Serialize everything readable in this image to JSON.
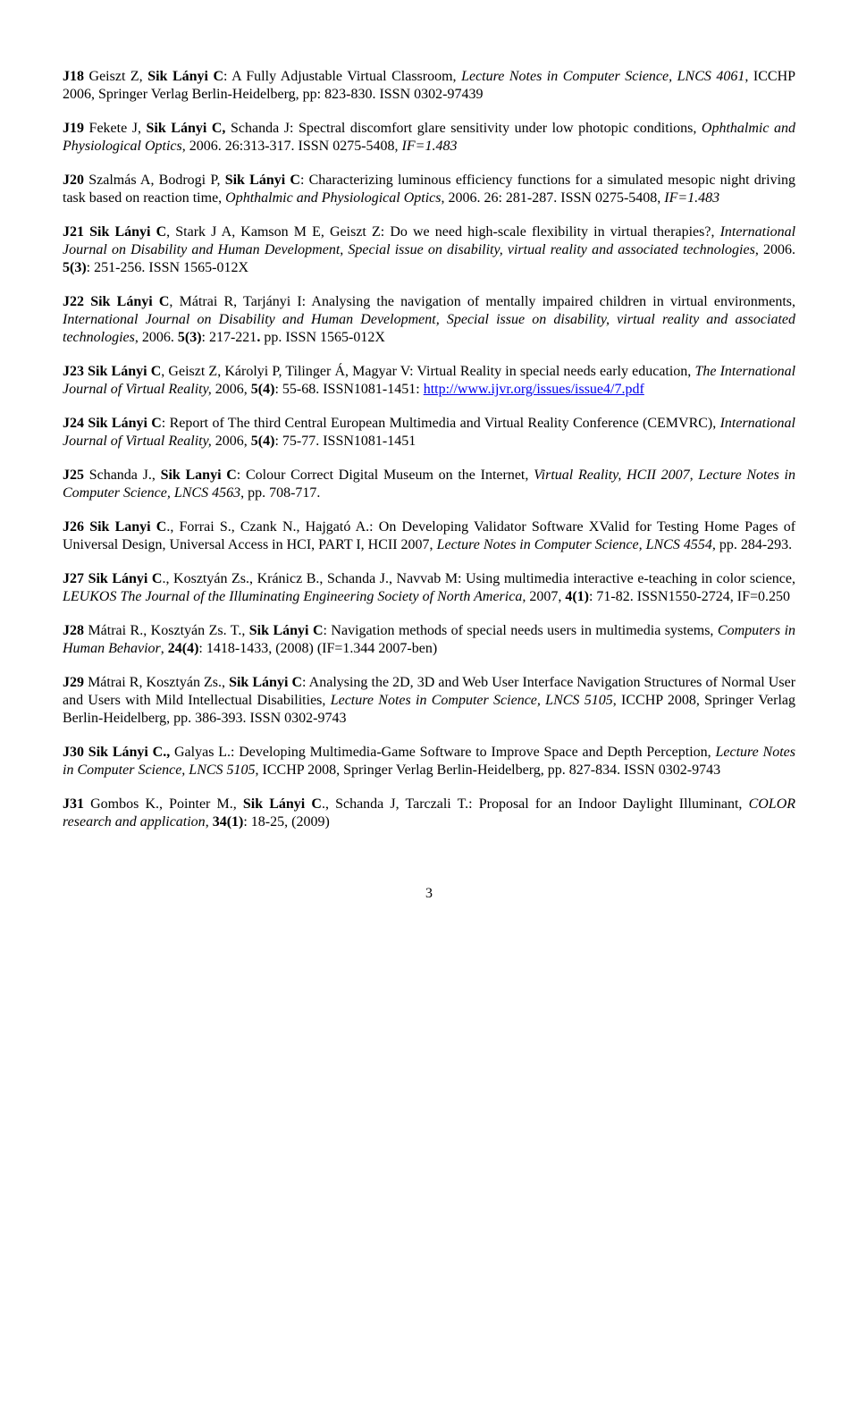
{
  "entries": [
    {
      "id": "J18",
      "segments": [
        {
          "t": "J18",
          "bold": true
        },
        {
          "t": "     Geiszt Z, "
        },
        {
          "t": "Sik Lányi C",
          "bold": true
        },
        {
          "t": ": A Fully Adjustable Virtual Classroom, "
        },
        {
          "t": "Lecture Notes in Computer Science, LNCS 4061",
          "italic": true
        },
        {
          "t": ", ICCHP 2006, Springer Verlag Berlin-Heidelberg, pp: 823-830. ISSN 0302-97439"
        }
      ]
    },
    {
      "id": "J19",
      "segments": [
        {
          "t": "J19",
          "bold": true
        },
        {
          "t": "     Fekete J, "
        },
        {
          "t": "Sik Lányi C,",
          "bold": true
        },
        {
          "t": " Schanda J: Spectral discomfort glare sensitivity under low photopic conditions, "
        },
        {
          "t": "Ophthalmic and Physiological Optics",
          "italic": true
        },
        {
          "t": ", 2006. 26:313-317. ISSN 0275-5408, "
        },
        {
          "t": "IF=1.483",
          "italic": true
        }
      ]
    },
    {
      "id": "J20",
      "segments": [
        {
          "t": "J20",
          "bold": true
        },
        {
          "t": "     Szalmás A, Bodrogi P, "
        },
        {
          "t": "Sik Lányi C",
          "bold": true
        },
        {
          "t": ": Characterizing luminous efficiency functions for a simulated mesopic night driving task based on reaction time, "
        },
        {
          "t": "Ophthalmic and Physiological Optics",
          "italic": true
        },
        {
          "t": ", 2006. 26: 281-287. ISSN 0275-5408, "
        },
        {
          "t": "IF=1.483",
          "italic": true
        }
      ]
    },
    {
      "id": "J21",
      "segments": [
        {
          "t": "J21",
          "bold": true
        },
        {
          "t": "     "
        },
        {
          "t": "Sik Lányi C",
          "bold": true
        },
        {
          "t": ", Stark J A, Kamson M E, Geiszt Z: Do we need high-scale flexibility in virtual therapies?, "
        },
        {
          "t": "International Journal on Disability and Human Development, Special issue on disability, virtual reality and associated technologies",
          "italic": true
        },
        {
          "t": ", 2006. "
        },
        {
          "t": "5(3)",
          "bold": true
        },
        {
          "t": ": 251-256. ISSN 1565-012X"
        }
      ]
    },
    {
      "id": "J22",
      "segments": [
        {
          "t": "J22",
          "bold": true
        },
        {
          "t": "     "
        },
        {
          "t": "Sik Lányi C",
          "bold": true
        },
        {
          "t": ", Mátrai R, Tarjányi I: Analysing the navigation of mentally impaired children in virtual environments, "
        },
        {
          "t": "International Journal on Disability and Human Development, Special issue on disability, virtual reality and associated technologies",
          "italic": true
        },
        {
          "t": ", 2006. "
        },
        {
          "t": "5(3)",
          "bold": true
        },
        {
          "t": ": 217-221"
        },
        {
          "t": ". ",
          "bold": true
        },
        {
          "t": "pp. ISSN 1565-012X"
        }
      ]
    },
    {
      "id": "J23",
      "segments": [
        {
          "t": "J23",
          "bold": true
        },
        {
          "t": "     "
        },
        {
          "t": "Sik Lányi C",
          "bold": true
        },
        {
          "t": ", Geiszt Z, Károlyi P, Tilinger Á, Magyar V: Virtual Reality in special needs early education, "
        },
        {
          "t": "The International Journal of Virtual Reality,",
          "italic": true
        },
        {
          "t": " 2006, "
        },
        {
          "t": "5(4)",
          "bold": true
        },
        {
          "t": ": 55-68. ISSN1081-1451: "
        },
        {
          "t": "http://www.ijvr.org/issues/issue4/7.pdf",
          "link": "http://www.ijvr.org/issues/issue4/7.pdf"
        }
      ]
    },
    {
      "id": "J24",
      "segments": [
        {
          "t": "J24",
          "bold": true
        },
        {
          "t": "     "
        },
        {
          "t": "Sik Lányi C",
          "bold": true
        },
        {
          "t": ": Report of The third Central European Multimedia and Virtual Reality Conference (CEMVRC), "
        },
        {
          "t": "International Journal of Virtual Reality,",
          "italic": true
        },
        {
          "t": " 2006, "
        },
        {
          "t": "5(4)",
          "bold": true
        },
        {
          "t": ": 75-77. ISSN1081-1451"
        }
      ]
    },
    {
      "id": "J25",
      "segments": [
        {
          "t": "J25",
          "bold": true
        },
        {
          "t": "     Schanda J., "
        },
        {
          "t": "Sik Lanyi C",
          "bold": true
        },
        {
          "t": ": Colour Correct Digital Museum on the Internet, "
        },
        {
          "t": "Virtual Reality, HCII 2007, Lecture Notes in Computer Science, LNCS 4563",
          "italic": true
        },
        {
          "t": ", pp. 708-717."
        }
      ]
    },
    {
      "id": "J26",
      "segments": [
        {
          "t": "J26",
          "bold": true
        },
        {
          "t": "     "
        },
        {
          "t": "Sik Lanyi C",
          "bold": true
        },
        {
          "t": "., Forrai S., Czank N., Hajgató A.: On Developing Validator Software XValid for Testing Home Pages of Universal Design, Universal Access in HCI, PART I, HCII 2007, "
        },
        {
          "t": "Lecture Notes in Computer Science, LNCS 4554",
          "italic": true
        },
        {
          "t": ", pp. 284-293."
        }
      ]
    },
    {
      "id": "J27",
      "segments": [
        {
          "t": "J27",
          "bold": true
        },
        {
          "t": "     "
        },
        {
          "t": "Sik Lányi C",
          "bold": true
        },
        {
          "t": "., Kosztyán Zs., Kránicz B., Schanda J., Navvab M: Using multimedia interactive e-teaching in color science, "
        },
        {
          "t": "LEUKOS The Journal of the Illuminating Engineering Society of North America,",
          "italic": true
        },
        {
          "t": " 2007, "
        },
        {
          "t": "4(1)",
          "bold": true
        },
        {
          "t": ": 71-82. ISSN1550-2724, IF=0.250"
        }
      ]
    },
    {
      "id": "J28",
      "segments": [
        {
          "t": "J28",
          "bold": true
        },
        {
          "t": "     Mátrai R., Kosztyán Zs. T., "
        },
        {
          "t": "Sik Lányi C",
          "bold": true
        },
        {
          "t": ": Navigation methods of special needs users in multimedia systems, "
        },
        {
          "t": "Computers in Human Behavior",
          "italic": true
        },
        {
          "t": ", "
        },
        {
          "t": "24(4)",
          "bold": true
        },
        {
          "t": ": 1418-1433, (2008) (IF=1.344 2007-ben)"
        }
      ]
    },
    {
      "id": "J29",
      "segments": [
        {
          "t": "J29",
          "bold": true
        },
        {
          "t": "     Mátrai R, Kosztyán Zs., "
        },
        {
          "t": "Sik Lányi C",
          "bold": true
        },
        {
          "t": ": Analysing the 2D, 3D and Web User Interface Navigation Structures of Normal User and Users with Mild Intellectual Disabilities, "
        },
        {
          "t": "Lecture Notes in Computer Science, LNCS 5105",
          "italic": true
        },
        {
          "t": ", ICCHP 2008, Springer Verlag Berlin-Heidelberg, pp. 386-393. ISSN 0302-9743"
        }
      ]
    },
    {
      "id": "J30",
      "segments": [
        {
          "t": "J30",
          "bold": true
        },
        {
          "t": "     "
        },
        {
          "t": "Sik Lányi C., ",
          "bold": true
        },
        {
          "t": "Galyas L.: Developing Multimedia-Game Software to Improve Space and Depth Perception, "
        },
        {
          "t": "Lecture Notes in Computer Science, LNCS 5105",
          "italic": true
        },
        {
          "t": ", ICCHP 2008, Springer Verlag Berlin-Heidelberg, pp. 827-834. ISSN 0302-9743"
        }
      ]
    },
    {
      "id": "J31",
      "segments": [
        {
          "t": "J31",
          "bold": true
        },
        {
          "t": "     Gombos K., Pointer M., "
        },
        {
          "t": "Sik Lányi C",
          "bold": true
        },
        {
          "t": "., Schanda J, Tarczali T.: Proposal for an Indoor Daylight Illuminant, "
        },
        {
          "t": "COLOR research and application",
          "italic": true
        },
        {
          "t": ", "
        },
        {
          "t": "34(1)",
          "bold": true
        },
        {
          "t": ": 18-25, (2009)"
        }
      ]
    }
  ],
  "pageNumber": "3"
}
